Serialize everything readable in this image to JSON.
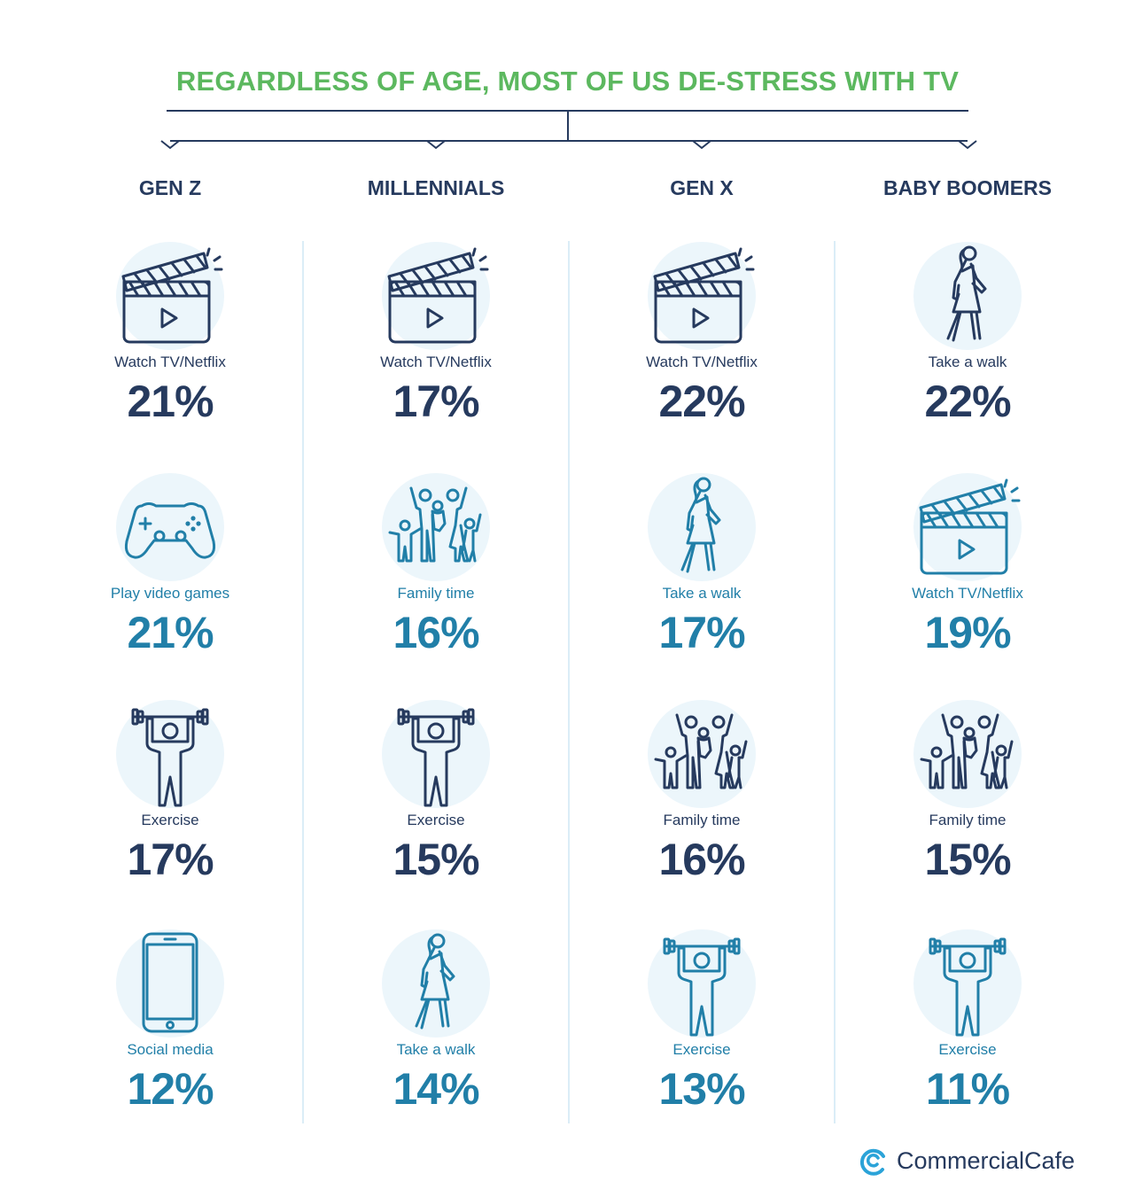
{
  "title": "REGARDLESS OF AGE, MOST OF US DE-STRESS WITH TV",
  "colors": {
    "title": "#5cb85f",
    "navy": "#263a5e",
    "teal": "#217fa8",
    "circle": "#ecf6fb",
    "divider": "#dbedf7",
    "logo": "#2ba3d8"
  },
  "brand": {
    "name": "CommercialCafe",
    "icon": "commercialcafe-logo"
  },
  "chart_data": {
    "type": "table",
    "title": "REGARDLESS OF AGE, MOST OF US DE-STRESS WITH TV",
    "unit": "%",
    "series": [
      {
        "name": "GEN Z",
        "items": [
          {
            "activity": "Watch TV/Netflix",
            "value": 21,
            "pct": "21%",
            "icon": "clapperboard-icon",
            "tone": "navy"
          },
          {
            "activity": "Play video games",
            "value": 21,
            "pct": "21%",
            "icon": "gamepad-icon",
            "tone": "teal"
          },
          {
            "activity": "Exercise",
            "value": 17,
            "pct": "17%",
            "icon": "weightlifter-icon",
            "tone": "navy"
          },
          {
            "activity": "Social media",
            "value": 12,
            "pct": "12%",
            "icon": "smartphone-icon",
            "tone": "teal"
          }
        ]
      },
      {
        "name": "MILLENNIALS",
        "items": [
          {
            "activity": "Watch TV/Netflix",
            "value": 17,
            "pct": "17%",
            "icon": "clapperboard-icon",
            "tone": "navy"
          },
          {
            "activity": "Family time",
            "value": 16,
            "pct": "16%",
            "icon": "family-icon",
            "tone": "teal"
          },
          {
            "activity": "Exercise",
            "value": 15,
            "pct": "15%",
            "icon": "weightlifter-icon",
            "tone": "navy"
          },
          {
            "activity": "Take a walk",
            "value": 14,
            "pct": "14%",
            "icon": "walking-woman-icon",
            "tone": "teal"
          }
        ]
      },
      {
        "name": "GEN X",
        "items": [
          {
            "activity": "Watch TV/Netflix",
            "value": 22,
            "pct": "22%",
            "icon": "clapperboard-icon",
            "tone": "navy"
          },
          {
            "activity": "Take a walk",
            "value": 17,
            "pct": "17%",
            "icon": "walking-woman-icon",
            "tone": "teal"
          },
          {
            "activity": "Family time",
            "value": 16,
            "pct": "16%",
            "icon": "family-icon",
            "tone": "navy"
          },
          {
            "activity": "Exercise",
            "value": 13,
            "pct": "13%",
            "icon": "weightlifter-icon",
            "tone": "teal"
          }
        ]
      },
      {
        "name": "BABY BOOMERS",
        "items": [
          {
            "activity": "Take a walk",
            "value": 22,
            "pct": "22%",
            "icon": "walking-woman-icon",
            "tone": "navy"
          },
          {
            "activity": "Watch TV/Netflix",
            "value": 19,
            "pct": "19%",
            "icon": "clapperboard-icon",
            "tone": "teal"
          },
          {
            "activity": "Family time",
            "value": 15,
            "pct": "15%",
            "icon": "family-icon",
            "tone": "navy"
          },
          {
            "activity": "Exercise",
            "value": 11,
            "pct": "11%",
            "icon": "weightlifter-icon",
            "tone": "teal"
          }
        ]
      }
    ]
  }
}
